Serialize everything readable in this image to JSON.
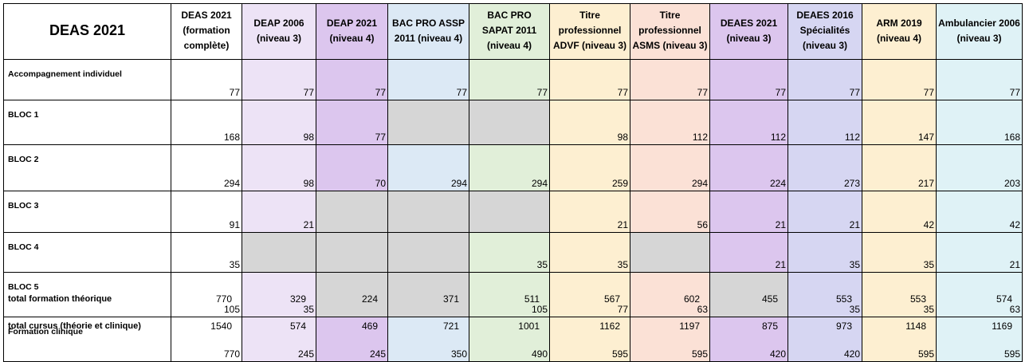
{
  "table": {
    "corner_title": "DEAS 2021",
    "headers": [
      "DEAS 2021 (formation complète)",
      "DEAP 2006 (niveau 3)",
      "DEAP 2021 (niveau 4)",
      "BAC PRO ASSP 2011 (niveau 4)",
      "BAC PRO SAPAT 2011 (niveau 4)",
      "Titre professionnel ADVF (niveau 3)",
      "Titre professionnel ASMS (niveau 3)",
      "DEAES 2021 (niveau 3)",
      "DEAES 2016 Spécialités (niveau 3)",
      "ARM 2019 (niveau 4)",
      "Ambulancier 2006 (niveau 3)"
    ],
    "header_colors": [
      "#ffffff",
      "#ede3f6",
      "#dcc6ee",
      "#dce9f5",
      "#e1efd9",
      "#fdefd1",
      "#fbe1d6",
      "#dcc6ee",
      "#d6d6f2",
      "#fdefd1",
      "#dff2f6"
    ],
    "gray_color": "#d6d6d6",
    "rows": [
      {
        "label": "Accompagnement individuel",
        "values": [
          "77",
          "77",
          "77",
          "77",
          "77",
          "77",
          "77",
          "77",
          "77",
          "77",
          "77"
        ]
      },
      {
        "label": "BLOC 1",
        "values": [
          "168",
          "98",
          "77",
          null,
          null,
          "98",
          "112",
          "112",
          "112",
          "147",
          "168"
        ]
      },
      {
        "label": "BLOC 2",
        "values": [
          "294",
          "98",
          "70",
          "294",
          "294",
          "259",
          "294",
          "224",
          "273",
          "217",
          "203"
        ]
      },
      {
        "label": "BLOC 3",
        "values": [
          "91",
          "21",
          null,
          null,
          null,
          "21",
          "56",
          "21",
          "21",
          "42",
          "42"
        ]
      },
      {
        "label": "BLOC 4",
        "values": [
          "35",
          null,
          null,
          null,
          "35",
          "35",
          null,
          "21",
          "35",
          "35",
          "21"
        ]
      },
      {
        "label": "BLOC 5",
        "values": [
          "105",
          "35",
          null,
          null,
          "105",
          "77",
          "63",
          null,
          "35",
          "35",
          "63"
        ]
      },
      {
        "label": "Formation clinique",
        "values": [
          "770",
          "245",
          "245",
          "350",
          "490",
          "595",
          "595",
          "420",
          "420",
          "595",
          "595"
        ]
      }
    ]
  },
  "totals": [
    {
      "label": "total formation théorique",
      "values": [
        "770",
        "329",
        "224",
        "371",
        "511",
        "567",
        "602",
        "455",
        "553",
        "553",
        "574"
      ]
    },
    {
      "label": "total cursus (théorie et clinique)",
      "values": [
        "1540",
        "574",
        "469",
        "721",
        "1001",
        "1162",
        "1197",
        "875",
        "973",
        "1148",
        "1169"
      ]
    }
  ]
}
